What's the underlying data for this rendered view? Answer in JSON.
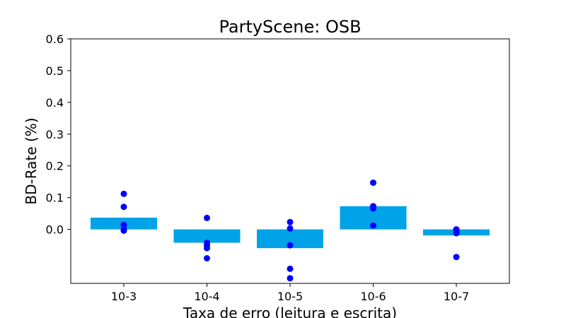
{
  "chart_data": {
    "type": "bar",
    "title": "PartyScene: OSB",
    "xlabel": "Taxa de erro (leitura e escrita)",
    "ylabel": "BD-Rate (%)",
    "categories": [
      "10-3",
      "10-4",
      "10-5",
      "10-6",
      "10-7"
    ],
    "values": [
      0.037,
      -0.042,
      -0.059,
      0.073,
      -0.019
    ],
    "points": [
      [
        0.112,
        0.071,
        0.014,
        0.0,
        -0.004
      ],
      [
        0.036,
        -0.042,
        -0.05,
        -0.059,
        -0.091
      ],
      [
        0.023,
        0.003,
        -0.05,
        -0.124,
        -0.154
      ],
      [
        0.147,
        0.073,
        0.066,
        0.012
      ],
      [
        0.0,
        -0.005,
        -0.012,
        -0.087
      ]
    ],
    "yticks": [
      0.0,
      0.1,
      0.2,
      0.3,
      0.4,
      0.5,
      0.6
    ],
    "ytick_labels": [
      "0.0",
      "0.1",
      "0.2",
      "0.3",
      "0.4",
      "0.5",
      "0.6"
    ],
    "ylim": [
      -0.17,
      0.6
    ],
    "grid": false,
    "colors": {
      "bar": "#00a2e8",
      "points": "#0000ff"
    }
  }
}
